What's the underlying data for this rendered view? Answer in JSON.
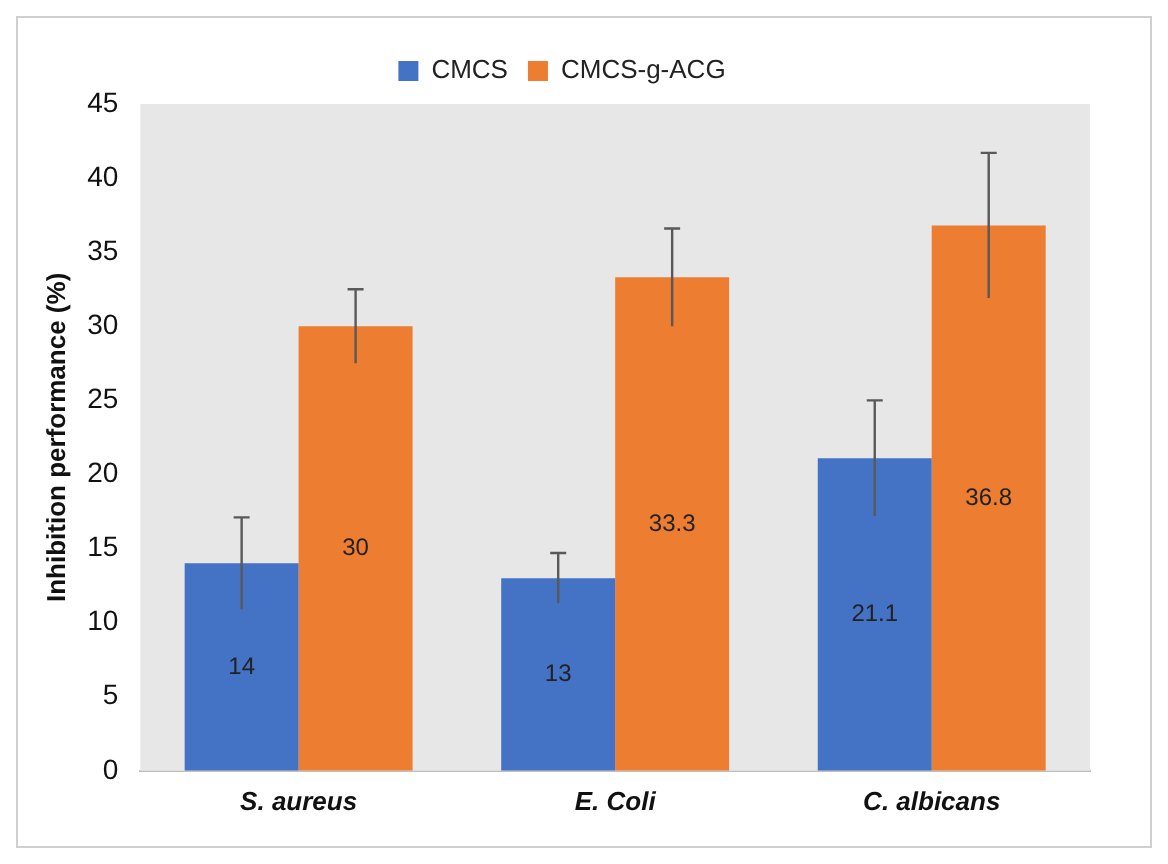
{
  "chart_data": {
    "type": "bar",
    "ylabel": "Inhibition performance (%)",
    "categories": [
      "S. aureus",
      "E. Coli",
      "C. albicans"
    ],
    "series": [
      {
        "name": "CMCS",
        "color": "#4472c4",
        "values": [
          14,
          13,
          21.1
        ],
        "errors": [
          3.1,
          1.7,
          3.9
        ]
      },
      {
        "name": "CMCS-g-ACG",
        "color": "#ed7d31",
        "values": [
          30,
          33.3,
          36.8
        ],
        "errors": [
          2.5,
          3.3,
          4.9
        ]
      }
    ],
    "ylim": [
      0,
      45
    ],
    "yticks": [
      0,
      5,
      10,
      15,
      20,
      25,
      30,
      35,
      40,
      45
    ],
    "grid": false,
    "legend": "top",
    "data_labels": true
  }
}
